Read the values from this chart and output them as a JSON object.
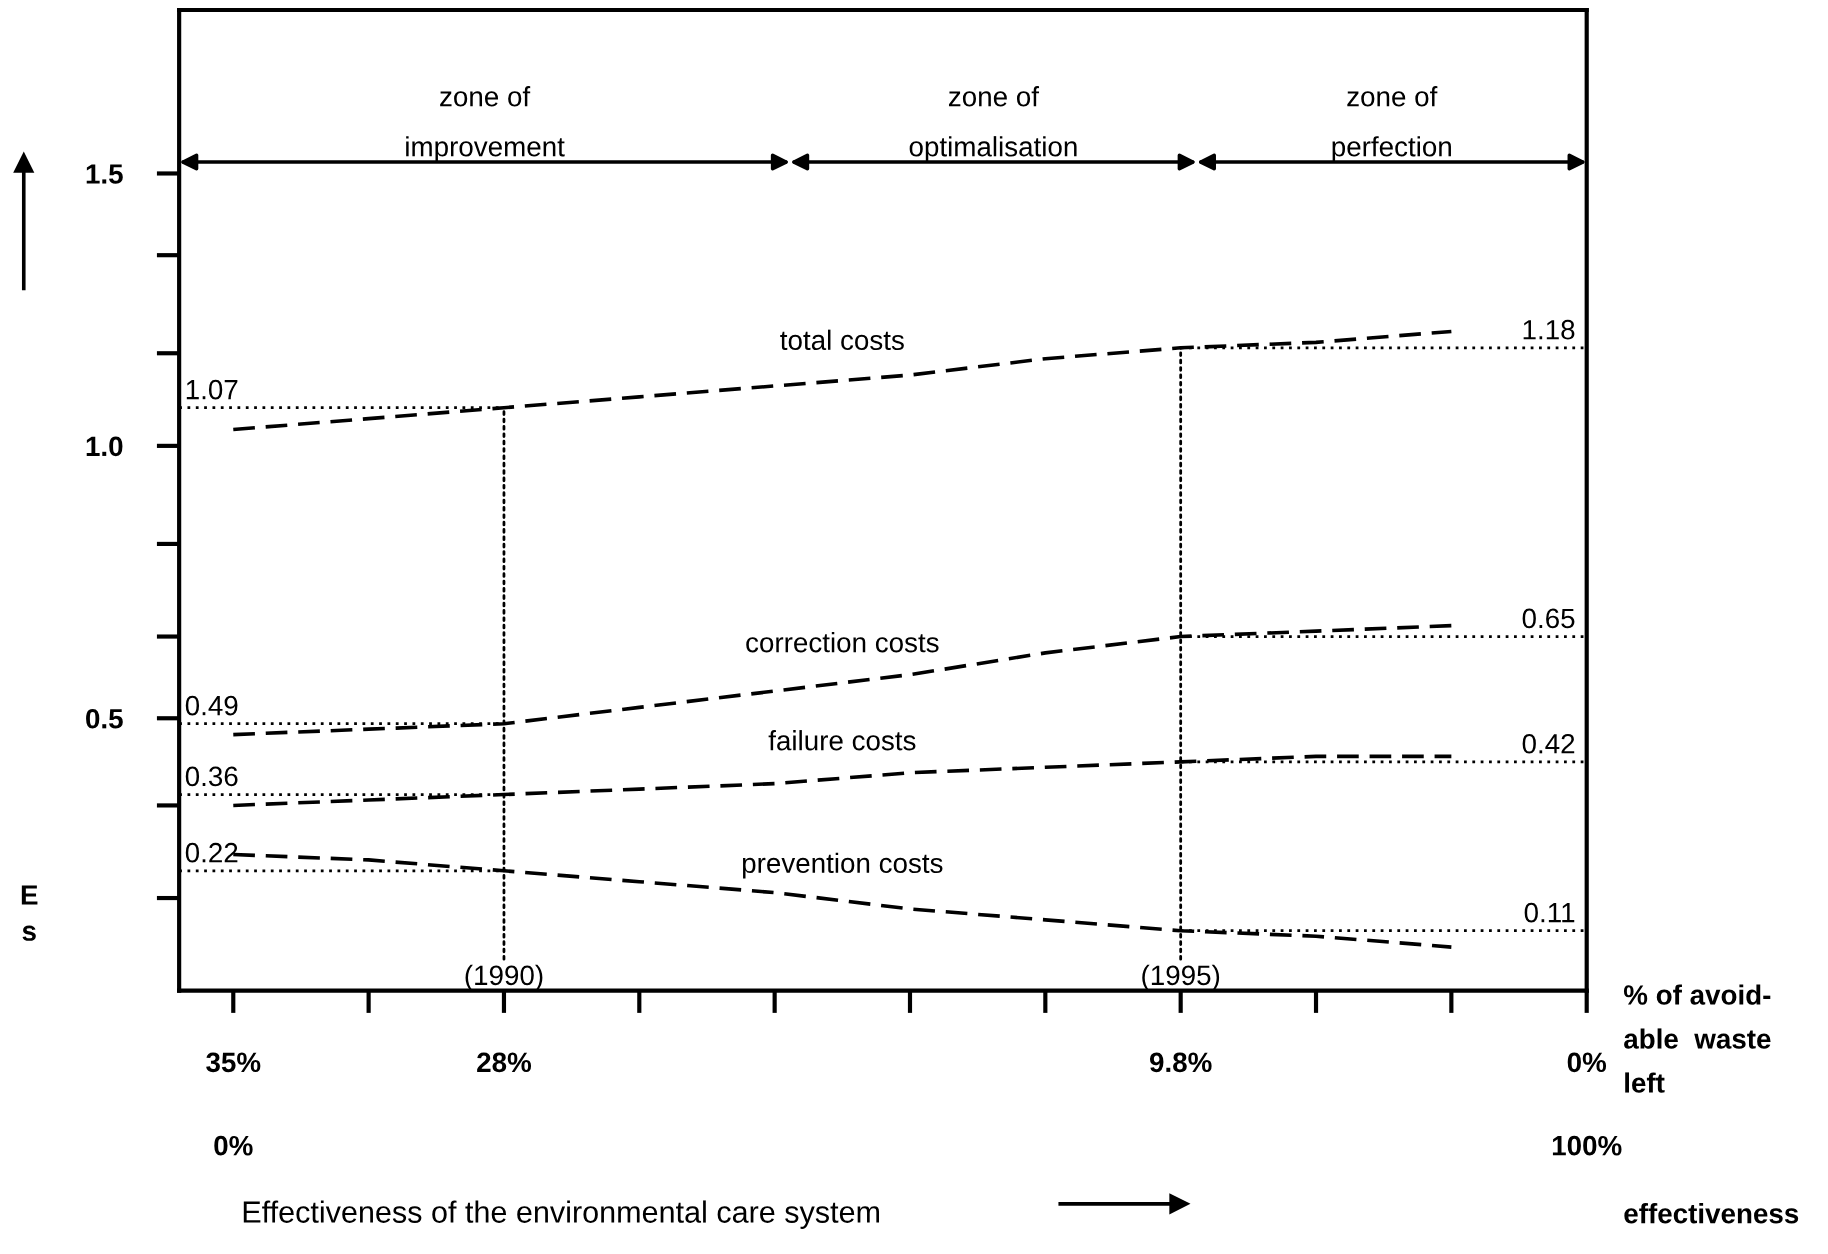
{
  "chart_data": {
    "type": "line",
    "xlabel": "Effectiveness of the environmental care system",
    "ylabel": "E\ns",
    "categories": [
      "35%",
      null,
      "28%",
      null,
      null,
      null,
      null,
      "9.8%",
      null,
      null,
      "0%"
    ],
    "ylim": [
      0,
      1.8
    ],
    "yticks": [
      {
        "value": 0.17,
        "label": null
      },
      {
        "value": 0.34,
        "label": null
      },
      0.5,
      {
        "value": 0.65,
        "label": null
      },
      {
        "value": 0.82,
        "label": null
      },
      {
        "value": 1.0,
        "label": "1.0"
      },
      {
        "value": 1.17,
        "label": null
      },
      {
        "value": 1.35,
        "label": null
      },
      1.5
    ],
    "line_style": "dashed",
    "grid": false,
    "legend": false,
    "series": [
      {
        "name": "total costs",
        "color": "#000000",
        "values": [
          1.03,
          1.05,
          1.07,
          1.09,
          1.11,
          1.13,
          1.16,
          1.18,
          1.19,
          1.21,
          null
        ],
        "value_labels": [
          null,
          null,
          "1.07",
          null,
          null,
          null,
          null,
          "1.18",
          null,
          null,
          null
        ]
      },
      {
        "name": "correction costs",
        "color": "#000000",
        "values": [
          0.47,
          0.48,
          0.49,
          0.52,
          0.55,
          0.58,
          0.62,
          0.65,
          0.66,
          0.67,
          null
        ],
        "value_labels": [
          null,
          null,
          "0.49",
          null,
          null,
          null,
          null,
          "0.65",
          null,
          null,
          null
        ]
      },
      {
        "name": "failure costs",
        "color": "#000000",
        "values": [
          0.34,
          0.35,
          0.36,
          0.37,
          0.38,
          0.4,
          0.41,
          0.42,
          0.43,
          0.43,
          null
        ],
        "value_labels": [
          null,
          null,
          "0.36",
          null,
          null,
          null,
          null,
          "0.42",
          null,
          null,
          null
        ]
      },
      {
        "name": "prevention costs",
        "color": "#000000",
        "values": [
          0.25,
          0.24,
          0.22,
          0.2,
          0.18,
          0.15,
          0.13,
          0.11,
          0.1,
          0.08,
          null
        ],
        "value_labels": [
          null,
          null,
          "0.22",
          null,
          null,
          null,
          null,
          "0.11",
          null,
          null,
          null
        ]
      }
    ],
    "annotations": [
      {
        "text": "(1990)",
        "x": "28%",
        "y": 1.07
      },
      {
        "text": "(1995)",
        "x": "9.8%",
        "y": 1.18
      },
      "zone of\nimprovement",
      "zone of\noptimalisation",
      "zone of\nperfection",
      "% of avoid-\nable  waste\nleft",
      "effectiveness",
      "0%",
      "100%"
    ]
  }
}
